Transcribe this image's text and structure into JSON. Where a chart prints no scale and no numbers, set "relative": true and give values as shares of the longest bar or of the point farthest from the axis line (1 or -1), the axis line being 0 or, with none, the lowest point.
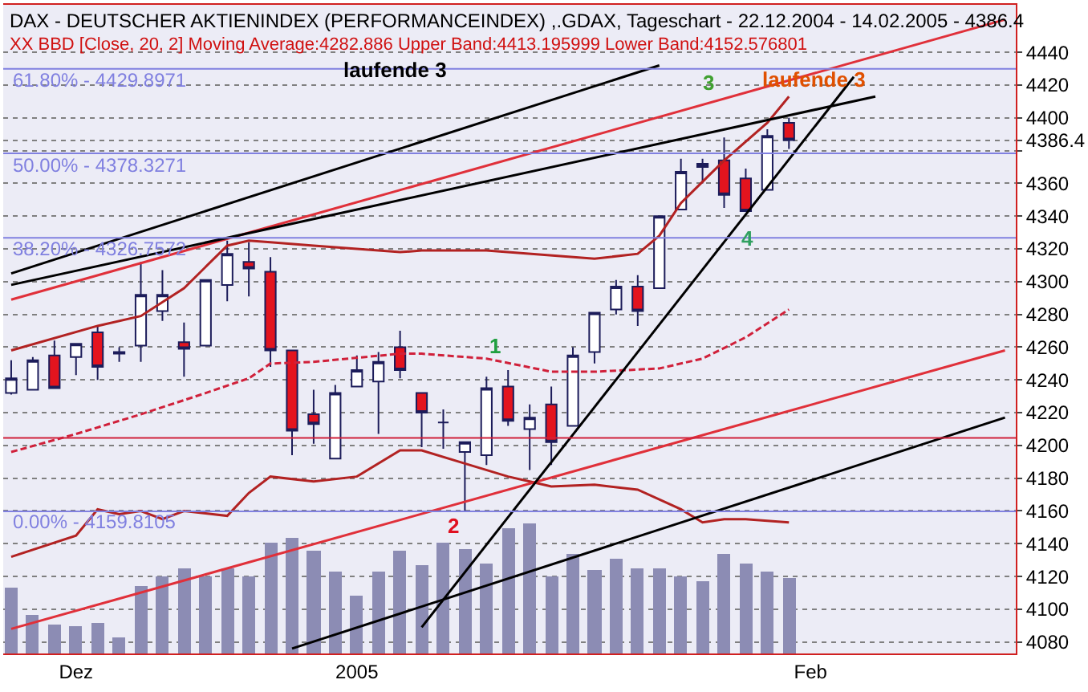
{
  "chart_data": [
    {
      "type": "candlestick",
      "title": "DAX - DEUTSCHER AKTIENINDEX (PERFORMANCEINDEX) ,.GDAX, Tageschart - 22.12.2004 - 14.02.2005 - 4386.4",
      "subtitle": "XX BBD [Close, 20, 2] Moving Average:4282.886 Upper Band:4413.195999 Lower Band:4152.576801",
      "categories": [
        null,
        null,
        null,
        "Dez",
        null,
        null,
        null,
        null,
        null,
        null,
        null,
        null,
        null,
        null,
        null,
        null,
        "2005",
        null,
        null,
        null,
        null,
        null,
        null,
        null,
        null,
        null,
        null,
        null,
        null,
        null,
        null,
        null,
        null,
        null,
        null,
        null,
        null,
        "Feb",
        null,
        null,
        null,
        null,
        null,
        null,
        null,
        null,
        null
      ],
      "ohlc": [
        [
          4232,
          4252,
          4231,
          4241
        ],
        [
          4234,
          4254,
          4234,
          4252
        ],
        [
          4255,
          4264,
          4235,
          4235
        ],
        [
          4254,
          4262,
          4243,
          4262
        ],
        [
          4269,
          4273,
          4240,
          4248
        ],
        [
          4256,
          4260,
          4251,
          4257
        ],
        [
          4261,
          4312,
          4251,
          4292
        ],
        [
          4282,
          4307,
          4276,
          4292
        ],
        [
          4263,
          4275,
          4242,
          4259
        ],
        [
          4261,
          4301,
          4261,
          4301
        ],
        [
          4298,
          4325,
          4288,
          4317
        ],
        [
          4312,
          4324,
          4291,
          4308
        ],
        [
          4306,
          4315,
          4248,
          4258
        ],
        [
          4258,
          4258,
          4194,
          4209
        ],
        [
          4219,
          4234,
          4201,
          4213
        ],
        [
          4192,
          4237,
          4192,
          4232
        ],
        [
          4236,
          4255,
          4236,
          4246
        ],
        [
          4239,
          4257,
          4207,
          4251
        ],
        [
          4260,
          4270,
          4241,
          4246
        ],
        [
          4232,
          4232,
          4199,
          4220
        ],
        [
          4214,
          4222,
          4198,
          4214
        ],
        [
          4196,
          4202,
          4160,
          4202
        ],
        [
          4194,
          4242,
          4188,
          4235
        ],
        [
          4236,
          4246,
          4212,
          4215
        ],
        [
          4210,
          4225,
          4185,
          4217
        ],
        [
          4225,
          4236,
          4188,
          4202
        ],
        [
          4212,
          4260,
          4212,
          4255
        ],
        [
          4257,
          4281,
          4250,
          4281
        ],
        [
          4283,
          4301,
          4280,
          4297
        ],
        [
          4297,
          4304,
          4273,
          4282
        ],
        [
          4296,
          4340,
          4296,
          4340
        ],
        [
          4344,
          4375,
          4344,
          4367
        ],
        [
          4370,
          4375,
          4360,
          4372
        ],
        [
          4374,
          4388,
          4345,
          4353
        ],
        [
          4363,
          4369,
          4343,
          4343
        ],
        [
          4356,
          4393,
          4356,
          4389
        ],
        [
          4397,
          4400,
          4381,
          4386.4
        ],
        null,
        null,
        null,
        null,
        null,
        null,
        null,
        null,
        null,
        null
      ],
      "series": [
        {
          "type": "line",
          "color": "#b22222",
          "values": [
            4258,
            null,
            null,
            null,
            4273,
            null,
            4279,
            null,
            4296,
            null,
            4322,
            4325,
            4324,
            null,
            4322,
            null,
            null,
            null,
            4318,
            4319,
            null,
            null,
            4319,
            null,
            null,
            null,
            null,
            4314,
            null,
            4317,
            4328,
            4348,
            4361,
            4374,
            null,
            4397,
            4413,
            null,
            null,
            null,
            null,
            null,
            null,
            null,
            null,
            null,
            null
          ]
        },
        {
          "type": "line",
          "color": "#d0203a",
          "line_style": "dashed",
          "values": [
            4196,
            null,
            null,
            4207,
            null,
            null,
            4219,
            null,
            null,
            4232,
            null,
            4241,
            4250,
            null,
            4251,
            null,
            null,
            null,
            4256,
            4256,
            null,
            null,
            4253,
            null,
            null,
            4245,
            null,
            4245,
            null,
            null,
            4247,
            null,
            4253,
            null,
            4266,
            null,
            4283,
            null,
            null,
            null,
            null,
            null,
            null,
            null,
            null,
            null,
            null
          ]
        },
        {
          "type": "line",
          "color": "#b22222",
          "values": [
            4132,
            null,
            null,
            4145,
            4161,
            4158,
            4160,
            4155,
            4160,
            null,
            4157,
            4171,
            4181,
            null,
            4178,
            null,
            4181,
            null,
            4197,
            4197,
            null,
            4189,
            null,
            4181,
            4178,
            4175,
            null,
            4176,
            null,
            4173,
            null,
            4161,
            4153,
            4155,
            4155,
            null,
            4153,
            null,
            null,
            null,
            null,
            null,
            null,
            null,
            null,
            null,
            null
          ]
        },
        {
          "type": "line",
          "color": "#000000",
          "values": [
            4305,
            null,
            null,
            null,
            null,
            null,
            null,
            null,
            null,
            null,
            null,
            null,
            null,
            null,
            null,
            null,
            null,
            null,
            null,
            null,
            null,
            null,
            null,
            null,
            null,
            null,
            null,
            null,
            null,
            null,
            4432,
            null,
            null,
            null,
            null,
            null,
            null,
            null,
            null,
            null,
            null,
            null,
            null,
            null,
            null,
            null,
            null
          ]
        },
        {
          "type": "line",
          "color": "#e0303a",
          "values": [
            4289,
            null,
            null,
            null,
            null,
            null,
            null,
            null,
            null,
            null,
            null,
            null,
            null,
            null,
            null,
            null,
            null,
            null,
            null,
            null,
            null,
            null,
            null,
            null,
            null,
            null,
            null,
            null,
            null,
            null,
            null,
            null,
            null,
            null,
            null,
            null,
            null,
            null,
            null,
            null,
            null,
            null,
            null,
            null,
            null,
            null,
            4460
          ]
        },
        {
          "type": "line",
          "color": "#e0303a",
          "values": [
            4088,
            null,
            null,
            null,
            null,
            null,
            null,
            null,
            null,
            null,
            null,
            null,
            null,
            null,
            null,
            null,
            null,
            null,
            null,
            null,
            null,
            null,
            null,
            null,
            null,
            null,
            null,
            null,
            null,
            null,
            null,
            null,
            null,
            null,
            null,
            null,
            null,
            null,
            null,
            null,
            null,
            null,
            null,
            null,
            null,
            null,
            4258
          ]
        },
        {
          "type": "line",
          "color": "#000000",
          "values": [
            null,
            null,
            null,
            null,
            null,
            null,
            null,
            null,
            null,
            null,
            null,
            null,
            null,
            4076,
            null,
            null,
            null,
            null,
            null,
            null,
            null,
            null,
            null,
            null,
            null,
            null,
            null,
            null,
            null,
            null,
            null,
            null,
            null,
            null,
            null,
            null,
            null,
            null,
            null,
            null,
            null,
            null,
            null,
            null,
            null,
            null,
            4217
          ]
        },
        {
          "type": "line",
          "color": "#000000",
          "values": [
            4298,
            null,
            null,
            null,
            null,
            null,
            null,
            null,
            null,
            null,
            null,
            null,
            null,
            null,
            null,
            null,
            null,
            null,
            null,
            null,
            null,
            null,
            null,
            null,
            null,
            null,
            null,
            null,
            null,
            null,
            null,
            null,
            null,
            null,
            null,
            null,
            null,
            null,
            null,
            null,
            4413,
            null,
            null,
            null,
            null,
            null,
            null
          ]
        },
        {
          "type": "line",
          "color": "#000000",
          "values": [
            null,
            null,
            null,
            null,
            null,
            null,
            null,
            null,
            null,
            null,
            null,
            null,
            null,
            null,
            null,
            null,
            null,
            null,
            null,
            4089,
            null,
            null,
            null,
            null,
            null,
            null,
            null,
            null,
            null,
            null,
            null,
            null,
            null,
            null,
            null,
            null,
            null,
            null,
            null,
            4425,
            null,
            null,
            null,
            null,
            null,
            null,
            null
          ]
        }
      ],
      "ylim": [
        4073,
        4469
      ],
      "yticks": [
        4080,
        4100,
        4120,
        4140,
        4160,
        4180,
        4200,
        4220,
        4240,
        4260,
        4280,
        4300,
        4320,
        4340,
        4360,
        {
          "value": 4380,
          "label": null
        },
        4400,
        4420,
        4440,
        {
          "value": 4386.4,
          "label": "4386.4"
        }
      ],
      "grid": "y",
      "ref_lines": [
        {
          "axis": "y",
          "value": 4429.8971,
          "color": "#8080e0"
        },
        {
          "axis": "y",
          "value": 4378.3271,
          "color": "#8080e0"
        },
        {
          "axis": "y",
          "value": 4326.7572,
          "color": "#8080e0"
        },
        {
          "axis": "y",
          "value": 4159.8105,
          "color": "#8080e0"
        },
        {
          "axis": "y",
          "value": 4204.6,
          "color": "#d0203a"
        }
      ],
      "annotations": [
        "laufende 3",
        "laufende 3",
        "1",
        "2",
        "3",
        "4",
        "61.80% - 4429.8971",
        "50.00% - 4378.3271",
        "38.20% - 4326.7572",
        "0.00% - 4159.8105"
      ]
    },
    {
      "type": "bar",
      "relative": true,
      "color": "#8c8cb4",
      "categories": [
        null,
        null,
        null,
        null,
        null,
        null,
        null,
        null,
        null,
        null,
        null,
        null,
        null,
        null,
        null,
        null,
        null,
        null,
        null,
        null,
        null,
        null,
        null,
        null,
        null,
        null,
        null,
        null,
        null,
        null,
        null,
        null,
        null,
        null,
        null,
        null,
        null
      ],
      "values": [
        0.51,
        0.3,
        0.22,
        0.21,
        0.23,
        0.13,
        0.52,
        0.6,
        0.65,
        0.59,
        0.66,
        0.59,
        0.85,
        0.89,
        0.79,
        0.63,
        0.45,
        0.63,
        0.79,
        0.68,
        0.86,
        0.8,
        0.69,
        0.96,
        1,
        0.6,
        0.77,
        0.64,
        0.73,
        0.65,
        0.66,
        0.6,
        0.56,
        0.77,
        0.69,
        0.63,
        0.58
      ]
    }
  ]
}
